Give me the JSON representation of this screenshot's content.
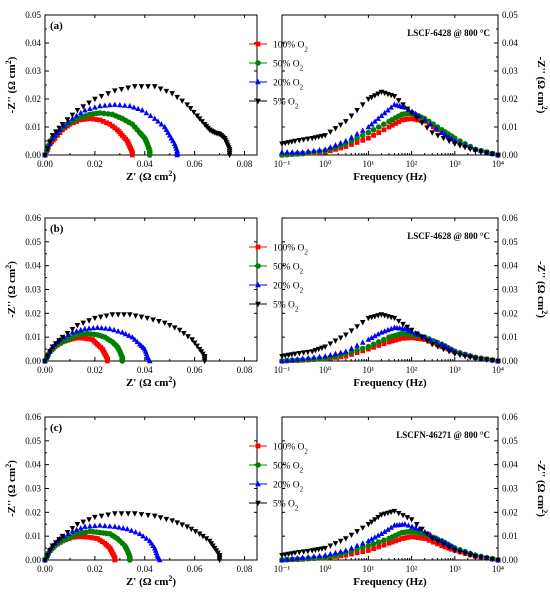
{
  "colors": {
    "100% O2": "#ff0000",
    "50% O2": "#008000",
    "20% O2": "#0000ff",
    "5% O2": "#000000"
  },
  "chart_data": [
    {
      "type": "scatter",
      "panel_label": "(a)",
      "xlabel": "Z' (Ω cm²)",
      "ylabel": "-Z'' (Ω cm²)",
      "xlim": [
        0,
        0.085
      ],
      "ylim": [
        0,
        0.05
      ],
      "xticks": [
        0,
        0.02,
        0.04,
        0.06,
        0.08
      ],
      "xtick_labels": [
        "0.00",
        "0.02",
        "0.04",
        "0.06",
        "0.08"
      ],
      "yticks": [
        0,
        0.01,
        0.02,
        0.03,
        0.04,
        0.05
      ],
      "ytick_labels": [
        "0.00",
        "0.01",
        "0.02",
        "0.03",
        "0.04",
        "0.05"
      ],
      "legend_position": "top-right",
      "series": [
        {
          "name": "100% O2",
          "marker": "square",
          "x": [
            0.0,
            0.002,
            0.004,
            0.007,
            0.01,
            0.014,
            0.018,
            0.022,
            0.026,
            0.029,
            0.031,
            0.033,
            0.034,
            0.035,
            0.035
          ],
          "y": [
            0.0,
            0.004,
            0.006,
            0.009,
            0.011,
            0.0125,
            0.013,
            0.0125,
            0.011,
            0.009,
            0.007,
            0.005,
            0.003,
            0.001,
            0.0
          ]
        },
        {
          "name": "50% O2",
          "marker": "circle",
          "x": [
            0.0,
            0.002,
            0.005,
            0.009,
            0.013,
            0.018,
            0.022,
            0.027,
            0.031,
            0.035,
            0.038,
            0.04,
            0.041,
            0.042,
            0.042
          ],
          "y": [
            0.0,
            0.005,
            0.008,
            0.011,
            0.013,
            0.0145,
            0.015,
            0.0145,
            0.013,
            0.011,
            0.008,
            0.006,
            0.004,
            0.0015,
            0.0
          ]
        },
        {
          "name": "20% O2",
          "marker": "triangle-up",
          "x": [
            0.0,
            0.003,
            0.006,
            0.011,
            0.016,
            0.022,
            0.028,
            0.034,
            0.039,
            0.044,
            0.048,
            0.05,
            0.052,
            0.053,
            0.053
          ],
          "y": [
            0.0,
            0.006,
            0.009,
            0.013,
            0.016,
            0.0175,
            0.018,
            0.0175,
            0.016,
            0.013,
            0.01,
            0.007,
            0.004,
            0.0015,
            0.0
          ]
        },
        {
          "name": "5% O2",
          "marker": "triangle-down",
          "x": [
            0.0,
            0.003,
            0.007,
            0.013,
            0.02,
            0.028,
            0.036,
            0.044,
            0.051,
            0.057,
            0.061,
            0.064,
            0.066,
            0.068,
            0.07,
            0.072,
            0.073,
            0.074,
            0.074
          ],
          "y": [
            0.0,
            0.007,
            0.011,
            0.016,
            0.02,
            0.023,
            0.0245,
            0.0245,
            0.022,
            0.018,
            0.014,
            0.011,
            0.009,
            0.008,
            0.0075,
            0.006,
            0.004,
            0.002,
            0.0
          ]
        }
      ]
    },
    {
      "type": "scatter",
      "annotation": "LSCF-6428 @ 800 °C",
      "xlabel": "Frequency (Hz)",
      "ylabel": "-Z'' (Ω cm²)",
      "xscale": "log",
      "xlim": [
        0.1,
        10000
      ],
      "ylim": [
        0,
        0.05
      ],
      "xtick_labels": [
        "10⁻¹",
        "10⁰",
        "10¹",
        "10²",
        "10³",
        "10⁴"
      ],
      "yticks": [
        0,
        0.01,
        0.02,
        0.03,
        0.04,
        0.05
      ],
      "ytick_labels": [
        "0.00",
        "0.01",
        "0.02",
        "0.03",
        "0.04",
        "0.05"
      ],
      "series": [
        {
          "name": "100% O2",
          "marker": "square",
          "x": [
            0.1,
            0.3,
            1,
            3,
            10,
            30,
            60,
            100,
            200,
            500,
            1000,
            3000,
            10000
          ],
          "y": [
            0.0,
            0.0005,
            0.001,
            0.003,
            0.006,
            0.01,
            0.0125,
            0.013,
            0.012,
            0.008,
            0.005,
            0.002,
            0.0
          ]
        },
        {
          "name": "50% O2",
          "marker": "circle",
          "x": [
            0.1,
            0.3,
            1,
            3,
            10,
            30,
            60,
            100,
            200,
            500,
            1000,
            3000,
            10000
          ],
          "y": [
            0.0,
            0.0005,
            0.0015,
            0.004,
            0.008,
            0.012,
            0.0145,
            0.015,
            0.013,
            0.009,
            0.006,
            0.002,
            0.0
          ]
        },
        {
          "name": "20% O2",
          "marker": "triangle-up",
          "x": [
            0.1,
            0.3,
            1,
            3,
            10,
            20,
            40,
            70,
            150,
            500,
            1000,
            3000,
            10000
          ],
          "y": [
            0.001,
            0.001,
            0.002,
            0.005,
            0.01,
            0.014,
            0.018,
            0.017,
            0.014,
            0.008,
            0.005,
            0.002,
            0.0
          ]
        },
        {
          "name": "5% O2",
          "marker": "triangle-down",
          "x": [
            0.1,
            0.2,
            0.5,
            1,
            3,
            10,
            20,
            40,
            100,
            300,
            1000,
            3000,
            10000
          ],
          "y": [
            0.004,
            0.005,
            0.006,
            0.007,
            0.012,
            0.02,
            0.0225,
            0.021,
            0.015,
            0.008,
            0.004,
            0.0015,
            0.0
          ]
        }
      ]
    },
    {
      "type": "scatter",
      "panel_label": "(b)",
      "xlabel": "Z' (Ω cm²)",
      "ylabel": "-Z'' (Ω cm²)",
      "xlim": [
        0,
        0.085
      ],
      "ylim": [
        0,
        0.06
      ],
      "xticks": [
        0,
        0.02,
        0.04,
        0.06,
        0.08
      ],
      "xtick_labels": [
        "0.00",
        "0.02",
        "0.04",
        "0.06",
        "0.08"
      ],
      "yticks": [
        0,
        0.01,
        0.02,
        0.03,
        0.04,
        0.05,
        0.06
      ],
      "ytick_labels": [
        "0.00",
        "0.01",
        "0.02",
        "0.03",
        "0.04",
        "0.05",
        "0.06"
      ],
      "legend_position": "top-right",
      "series": [
        {
          "name": "100% O2",
          "marker": "square",
          "x": [
            0.0,
            0.002,
            0.004,
            0.007,
            0.01,
            0.013,
            0.016,
            0.019,
            0.021,
            0.023,
            0.024,
            0.025,
            0.025
          ],
          "y": [
            0.0,
            0.004,
            0.006,
            0.008,
            0.009,
            0.0098,
            0.0095,
            0.009,
            0.007,
            0.005,
            0.003,
            0.001,
            0.0
          ]
        },
        {
          "name": "50% O2",
          "marker": "circle",
          "x": [
            0.0,
            0.002,
            0.005,
            0.009,
            0.013,
            0.017,
            0.021,
            0.024,
            0.027,
            0.029,
            0.03,
            0.031,
            0.031
          ],
          "y": [
            0.0,
            0.004,
            0.007,
            0.009,
            0.011,
            0.0115,
            0.011,
            0.01,
            0.008,
            0.006,
            0.004,
            0.0015,
            0.0
          ]
        },
        {
          "name": "20% O2",
          "marker": "triangle-up",
          "x": [
            0.0,
            0.003,
            0.006,
            0.011,
            0.016,
            0.021,
            0.026,
            0.031,
            0.035,
            0.038,
            0.04,
            0.041,
            0.042
          ],
          "y": [
            0.0,
            0.006,
            0.009,
            0.012,
            0.0135,
            0.014,
            0.0135,
            0.012,
            0.01,
            0.007,
            0.005,
            0.002,
            0.0
          ]
        },
        {
          "name": "5% O2",
          "marker": "triangle-down",
          "x": [
            0.0,
            0.003,
            0.007,
            0.013,
            0.02,
            0.027,
            0.034,
            0.041,
            0.048,
            0.054,
            0.059,
            0.062,
            0.064,
            0.064
          ],
          "y": [
            0.0,
            0.006,
            0.01,
            0.015,
            0.018,
            0.0195,
            0.0195,
            0.018,
            0.016,
            0.013,
            0.009,
            0.005,
            0.002,
            0.0
          ]
        }
      ]
    },
    {
      "type": "scatter",
      "annotation": "LSCF-4628 @ 800 °C",
      "xlabel": "Frequency (Hz)",
      "ylabel": "-Z'' (Ω cm²)",
      "xscale": "log",
      "xlim": [
        0.1,
        10000
      ],
      "ylim": [
        0,
        0.06
      ],
      "xtick_labels": [
        "10⁻¹",
        "10⁰",
        "10¹",
        "10²",
        "10³",
        "10⁴"
      ],
      "yticks": [
        0,
        0.01,
        0.02,
        0.03,
        0.04,
        0.05,
        0.06
      ],
      "ytick_labels": [
        "0.00",
        "0.01",
        "0.02",
        "0.03",
        "0.04",
        "0.05",
        "0.06"
      ],
      "series": [
        {
          "name": "100% O2",
          "marker": "square",
          "x": [
            0.1,
            0.3,
            1,
            3,
            10,
            30,
            60,
            100,
            200,
            500,
            1000,
            3000,
            10000
          ],
          "y": [
            0.0,
            0.0003,
            0.001,
            0.002,
            0.005,
            0.008,
            0.0095,
            0.0098,
            0.009,
            0.006,
            0.004,
            0.0015,
            0.0
          ]
        },
        {
          "name": "50% O2",
          "marker": "circle",
          "x": [
            0.1,
            0.3,
            1,
            3,
            10,
            30,
            60,
            100,
            200,
            500,
            1000,
            3000,
            10000
          ],
          "y": [
            0.0,
            0.0005,
            0.001,
            0.003,
            0.006,
            0.01,
            0.0115,
            0.011,
            0.01,
            0.007,
            0.004,
            0.0015,
            0.0
          ]
        },
        {
          "name": "20% O2",
          "marker": "triangle-up",
          "x": [
            0.1,
            0.3,
            1,
            3,
            10,
            20,
            40,
            70,
            150,
            500,
            1000,
            3000,
            10000
          ],
          "y": [
            0.0,
            0.001,
            0.002,
            0.004,
            0.009,
            0.012,
            0.014,
            0.0135,
            0.011,
            0.007,
            0.004,
            0.0015,
            0.0
          ]
        },
        {
          "name": "5% O2",
          "marker": "triangle-down",
          "x": [
            0.1,
            0.2,
            0.5,
            1,
            3,
            10,
            20,
            40,
            100,
            300,
            1000,
            3000,
            10000
          ],
          "y": [
            0.002,
            0.003,
            0.004,
            0.006,
            0.011,
            0.018,
            0.0195,
            0.018,
            0.013,
            0.007,
            0.003,
            0.001,
            0.0
          ]
        }
      ]
    },
    {
      "type": "scatter",
      "panel_label": "(c)",
      "xlabel": "Z' (Ω cm²)",
      "ylabel": "-Z'' (Ω cm²)",
      "xlim": [
        0,
        0.085
      ],
      "ylim": [
        0,
        0.06
      ],
      "xticks": [
        0,
        0.02,
        0.04,
        0.06,
        0.08
      ],
      "xtick_labels": [
        "0.00",
        "0.02",
        "0.04",
        "0.06",
        "0.08"
      ],
      "yticks": [
        0,
        0.01,
        0.02,
        0.03,
        0.04,
        0.05,
        0.06
      ],
      "ytick_labels": [
        "0.00",
        "0.01",
        "0.02",
        "0.03",
        "0.04",
        "0.05",
        "0.06"
      ],
      "legend_position": "top-right",
      "series": [
        {
          "name": "100% O2",
          "marker": "square",
          "x": [
            0.0,
            0.002,
            0.004,
            0.007,
            0.011,
            0.015,
            0.018,
            0.021,
            0.024,
            0.026,
            0.027,
            0.028,
            0.028
          ],
          "y": [
            0.0,
            0.004,
            0.006,
            0.008,
            0.0095,
            0.0098,
            0.0095,
            0.009,
            0.007,
            0.005,
            0.003,
            0.001,
            0.0
          ]
        },
        {
          "name": "50% O2",
          "marker": "circle",
          "x": [
            0.0,
            0.002,
            0.005,
            0.009,
            0.013,
            0.018,
            0.022,
            0.026,
            0.029,
            0.032,
            0.033,
            0.034,
            0.034
          ],
          "y": [
            0.0,
            0.004,
            0.007,
            0.009,
            0.011,
            0.012,
            0.0115,
            0.011,
            0.009,
            0.006,
            0.004,
            0.0015,
            0.0
          ]
        },
        {
          "name": "20% O2",
          "marker": "triangle-up",
          "x": [
            0.0,
            0.003,
            0.006,
            0.011,
            0.016,
            0.022,
            0.028,
            0.033,
            0.038,
            0.042,
            0.044,
            0.045,
            0.046
          ],
          "y": [
            0.0,
            0.006,
            0.009,
            0.012,
            0.014,
            0.0145,
            0.014,
            0.013,
            0.011,
            0.008,
            0.005,
            0.002,
            0.0
          ]
        },
        {
          "name": "5% O2",
          "marker": "triangle-down",
          "x": [
            0.0,
            0.003,
            0.007,
            0.013,
            0.02,
            0.028,
            0.036,
            0.044,
            0.051,
            0.057,
            0.062,
            0.066,
            0.068,
            0.07,
            0.07
          ],
          "y": [
            0.0,
            0.006,
            0.01,
            0.015,
            0.018,
            0.0195,
            0.0195,
            0.0185,
            0.0165,
            0.014,
            0.011,
            0.008,
            0.005,
            0.002,
            0.0
          ]
        }
      ]
    },
    {
      "type": "scatter",
      "annotation": "LSCFN-46271 @ 800 °C",
      "xlabel": "Frequency (Hz)",
      "ylabel": "-Z'' (Ω cm²)",
      "xscale": "log",
      "xlim": [
        0.1,
        10000
      ],
      "ylim": [
        0,
        0.06
      ],
      "xtick_labels": [
        "10⁻¹",
        "10⁰",
        "10¹",
        "10²",
        "10³",
        "10⁴"
      ],
      "yticks": [
        0,
        0.01,
        0.02,
        0.03,
        0.04,
        0.05,
        0.06
      ],
      "ytick_labels": [
        "0.00",
        "0.01",
        "0.02",
        "0.03",
        "0.04",
        "0.05",
        "0.06"
      ],
      "series": [
        {
          "name": "100% O2",
          "marker": "square",
          "x": [
            0.1,
            0.3,
            1,
            3,
            10,
            30,
            60,
            100,
            200,
            500,
            1000,
            3000,
            10000
          ],
          "y": [
            0.0,
            0.0003,
            0.001,
            0.002,
            0.004,
            0.007,
            0.009,
            0.0098,
            0.009,
            0.006,
            0.004,
            0.0015,
            0.0
          ]
        },
        {
          "name": "50% O2",
          "marker": "circle",
          "x": [
            0.1,
            0.3,
            1,
            3,
            10,
            30,
            60,
            100,
            200,
            500,
            1000,
            3000,
            10000
          ],
          "y": [
            0.0,
            0.0005,
            0.001,
            0.003,
            0.006,
            0.009,
            0.0115,
            0.012,
            0.011,
            0.008,
            0.005,
            0.002,
            0.0
          ]
        },
        {
          "name": "20% O2",
          "marker": "triangle-up",
          "x": [
            0.1,
            0.3,
            1,
            3,
            10,
            20,
            40,
            70,
            150,
            500,
            1000,
            3000,
            10000
          ],
          "y": [
            0.0,
            0.001,
            0.002,
            0.004,
            0.008,
            0.011,
            0.0145,
            0.015,
            0.013,
            0.008,
            0.005,
            0.002,
            0.0
          ]
        },
        {
          "name": "5% O2",
          "marker": "triangle-down",
          "x": [
            0.1,
            0.2,
            0.5,
            1,
            3,
            10,
            20,
            40,
            100,
            300,
            1000,
            3000,
            10000
          ],
          "y": [
            0.002,
            0.003,
            0.004,
            0.005,
            0.009,
            0.015,
            0.019,
            0.0205,
            0.017,
            0.009,
            0.004,
            0.0015,
            0.0
          ]
        }
      ]
    }
  ]
}
